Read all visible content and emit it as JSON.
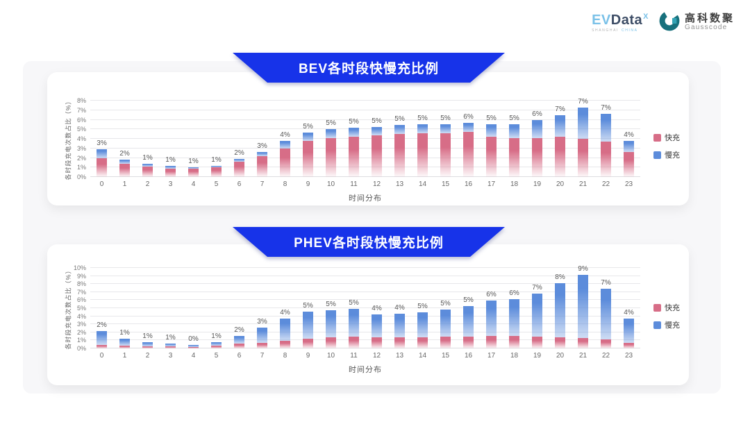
{
  "logo": {
    "evdata_ev": "EV",
    "evdata_rest": "Data",
    "evdata_sup": "X",
    "evdata_sub_1": "SHANGHAI",
    "evdata_sub_2": "CHINA",
    "gausscode_cn": "高科数聚",
    "gausscode_en": "Gausscode"
  },
  "colors": {
    "banner_blue": "#1733e9",
    "fast_pink": "#d76d87",
    "slow_blue": "#5c8cdb"
  },
  "legend": {
    "fast": "快充",
    "slow": "慢充"
  },
  "chart_data": [
    {
      "type": "bar",
      "stacked": true,
      "title": "BEV各时段快慢充比例",
      "xlabel": "时间分布",
      "ylabel": "各时段充电次数占比（%）",
      "ylim": [
        0,
        8
      ],
      "ytick_step": 1,
      "grid": true,
      "legend_position": "right",
      "categories": [
        "0",
        "1",
        "2",
        "3",
        "4",
        "5",
        "6",
        "7",
        "8",
        "9",
        "10",
        "11",
        "12",
        "13",
        "14",
        "15",
        "16",
        "17",
        "18",
        "19",
        "20",
        "21",
        "22",
        "23"
      ],
      "series": [
        {
          "name": "快充",
          "color": "#d76d87",
          "values": [
            2.0,
            1.4,
            1.1,
            0.9,
            0.9,
            1.0,
            1.6,
            2.2,
            3.0,
            3.8,
            4.1,
            4.2,
            4.4,
            4.5,
            4.6,
            4.6,
            4.7,
            4.2,
            4.1,
            4.1,
            4.2,
            4.0,
            3.7,
            2.6
          ]
        },
        {
          "name": "慢充",
          "color": "#5c8cdb",
          "values": [
            0.9,
            0.45,
            0.25,
            0.25,
            0.1,
            0.2,
            0.3,
            0.45,
            0.8,
            0.85,
            0.9,
            0.95,
            0.85,
            0.95,
            0.9,
            0.9,
            1.0,
            1.3,
            1.4,
            1.9,
            2.3,
            3.3,
            2.9,
            1.2
          ]
        }
      ],
      "total_labels": [
        "3%",
        "2%",
        "1%",
        "1%",
        "1%",
        "1%",
        "2%",
        "3%",
        "4%",
        "5%",
        "5%",
        "5%",
        "5%",
        "5%",
        "5%",
        "5%",
        "6%",
        "5%",
        "5%",
        "6%",
        "7%",
        "7%",
        "7%",
        "4%"
      ]
    },
    {
      "type": "bar",
      "stacked": true,
      "title": "PHEV各时段快慢充比例",
      "xlabel": "时间分布",
      "ylabel": "各时段充电次数占比（%）",
      "ylim": [
        0,
        10
      ],
      "ytick_step": 1,
      "grid": true,
      "legend_position": "right",
      "categories": [
        "0",
        "1",
        "2",
        "3",
        "4",
        "5",
        "6",
        "7",
        "8",
        "9",
        "10",
        "11",
        "12",
        "13",
        "14",
        "15",
        "16",
        "17",
        "18",
        "19",
        "20",
        "21",
        "22",
        "23"
      ],
      "series": [
        {
          "name": "快充",
          "color": "#d76d87",
          "values": [
            0.45,
            0.37,
            0.3,
            0.26,
            0.2,
            0.32,
            0.6,
            0.72,
            0.92,
            1.25,
            1.35,
            1.45,
            1.35,
            1.4,
            1.4,
            1.5,
            1.45,
            1.55,
            1.55,
            1.5,
            1.4,
            1.3,
            1.15,
            0.7
          ]
        },
        {
          "name": "慢充",
          "color": "#5c8cdb",
          "values": [
            1.7,
            0.85,
            0.5,
            0.37,
            0.26,
            0.5,
            0.95,
            1.9,
            2.8,
            3.3,
            3.4,
            3.45,
            2.9,
            2.95,
            3.1,
            3.35,
            3.8,
            4.4,
            4.6,
            5.3,
            6.7,
            7.8,
            6.3,
            3.0
          ]
        }
      ],
      "total_labels": [
        "2%",
        "1%",
        "1%",
        "1%",
        "0%",
        "1%",
        "2%",
        "3%",
        "4%",
        "5%",
        "5%",
        "5%",
        "4%",
        "4%",
        "5%",
        "5%",
        "5%",
        "6%",
        "6%",
        "7%",
        "8%",
        "9%",
        "7%",
        "4%"
      ]
    }
  ]
}
